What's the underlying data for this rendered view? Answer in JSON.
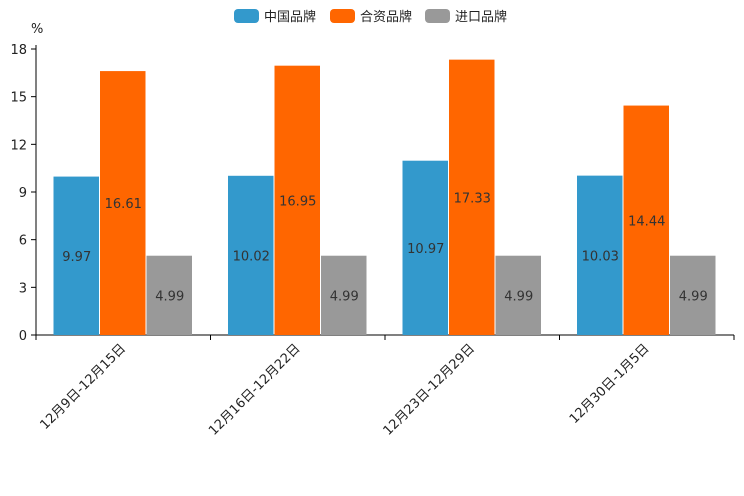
{
  "chart_data": {
    "type": "bar",
    "title": "",
    "xlabel": "",
    "ylabel": "%",
    "ylim": [
      0,
      18
    ],
    "yticks": [
      0,
      3,
      6,
      9,
      12,
      15,
      18
    ],
    "categories": [
      "12月9日-12月15日",
      "12月16日-12月22日",
      "12月23日-12月29日",
      "12月30日-1月5日"
    ],
    "series": [
      {
        "name": "中国品牌",
        "color": "#3399cc",
        "values": [
          9.97,
          10.02,
          10.97,
          10.03
        ]
      },
      {
        "name": "合资品牌",
        "color": "#ff6600",
        "values": [
          16.61,
          16.95,
          17.33,
          14.44
        ]
      },
      {
        "name": "进口品牌",
        "color": "#999999",
        "values": [
          4.99,
          4.99,
          4.99,
          4.99
        ]
      }
    ],
    "legend_position": "top-center",
    "grid": false
  }
}
